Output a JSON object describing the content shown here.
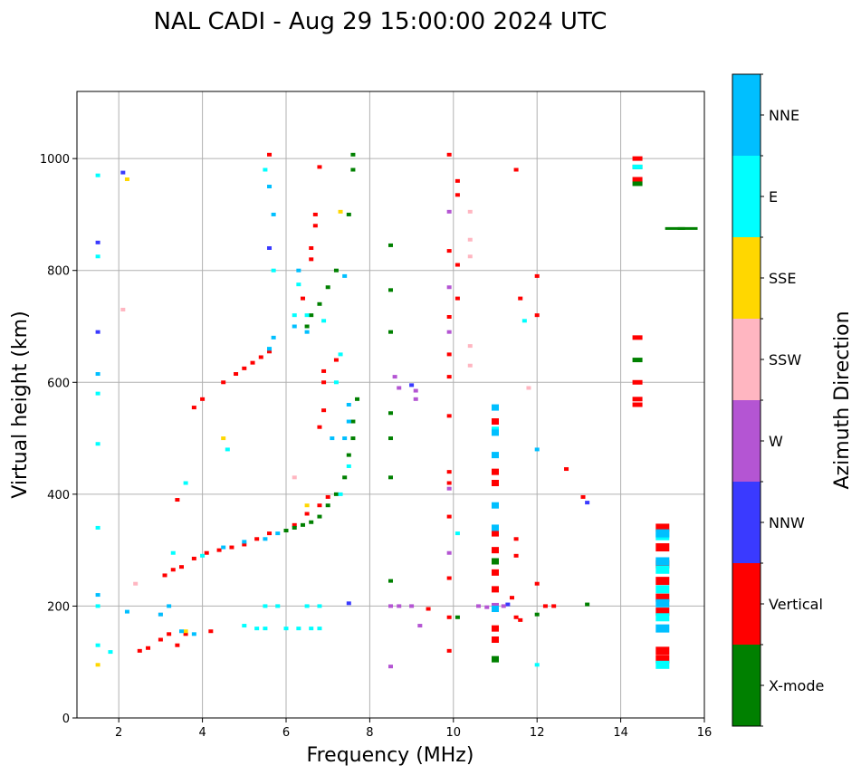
{
  "chart_data": {
    "type": "scatter",
    "title": "NAL CADI - Aug 29 15:00:00 2024 UTC",
    "xlabel": "Frequency (MHz)",
    "ylabel": "Virtual height (km)",
    "xlim": [
      1,
      16
    ],
    "ylim": [
      0,
      1120
    ],
    "xticks": [
      2,
      4,
      6,
      8,
      10,
      12,
      14,
      16
    ],
    "yticks": [
      0,
      200,
      400,
      600,
      800,
      1000
    ],
    "grid": true,
    "colorbar": {
      "label": "Azimuth Direction",
      "categories": [
        {
          "name": "X-mode",
          "color": "#008000"
        },
        {
          "name": "Vertical",
          "color": "#ff0000"
        },
        {
          "name": "NNW",
          "color": "#3a3aff"
        },
        {
          "name": "W",
          "color": "#b455d3"
        },
        {
          "name": "SSW",
          "color": "#ffb6c1"
        },
        {
          "name": "SSE",
          "color": "#ffd700"
        },
        {
          "name": "E",
          "color": "#00ffff"
        },
        {
          "name": "NNE",
          "color": "#00bfff"
        }
      ]
    },
    "series": [
      {
        "name": "Vertical",
        "points": [
          [
            2.5,
            120
          ],
          [
            2.7,
            125
          ],
          [
            3.0,
            140
          ],
          [
            3.2,
            150
          ],
          [
            3.4,
            130
          ],
          [
            3.6,
            150
          ],
          [
            4.2,
            155
          ],
          [
            3.1,
            255
          ],
          [
            3.3,
            265
          ],
          [
            3.5,
            270
          ],
          [
            3.8,
            285
          ],
          [
            4.1,
            295
          ],
          [
            4.4,
            300
          ],
          [
            4.7,
            305
          ],
          [
            5.0,
            310
          ],
          [
            5.3,
            320
          ],
          [
            5.6,
            330
          ],
          [
            4.5,
            600
          ],
          [
            4.8,
            615
          ],
          [
            5.0,
            625
          ],
          [
            5.2,
            635
          ],
          [
            5.4,
            645
          ],
          [
            5.6,
            655
          ],
          [
            3.4,
            390
          ],
          [
            3.8,
            555
          ],
          [
            4.0,
            570
          ],
          [
            6.2,
            345
          ],
          [
            6.5,
            365
          ],
          [
            6.8,
            380
          ],
          [
            7.0,
            395
          ],
          [
            6.4,
            750
          ],
          [
            6.6,
            820
          ],
          [
            6.6,
            840
          ],
          [
            6.7,
            880
          ],
          [
            6.7,
            900
          ],
          [
            6.8,
            985
          ],
          [
            6.8,
            520
          ],
          [
            6.9,
            550
          ],
          [
            6.9,
            600
          ],
          [
            6.9,
            620
          ],
          [
            7.2,
            640
          ],
          [
            5.6,
            1007
          ],
          [
            9.9,
            1007
          ],
          [
            9.9,
            835
          ],
          [
            9.9,
            717
          ],
          [
            9.9,
            650
          ],
          [
            9.9,
            610
          ],
          [
            9.9,
            540
          ],
          [
            9.9,
            440
          ],
          [
            9.9,
            420
          ],
          [
            9.9,
            360
          ],
          [
            9.9,
            250
          ],
          [
            9.9,
            180
          ],
          [
            9.9,
            120
          ],
          [
            10.1,
            960
          ],
          [
            10.1,
            935
          ],
          [
            10.1,
            810
          ],
          [
            10.1,
            750
          ],
          [
            11.0,
            530
          ],
          [
            11.0,
            440
          ],
          [
            11.0,
            420
          ],
          [
            11.0,
            330
          ],
          [
            11.0,
            300
          ],
          [
            11.0,
            260
          ],
          [
            11.0,
            230
          ],
          [
            11.0,
            160
          ],
          [
            11.0,
            140
          ],
          [
            11.5,
            980
          ],
          [
            11.6,
            750
          ],
          [
            11.5,
            320
          ],
          [
            11.5,
            290
          ],
          [
            11.4,
            215
          ],
          [
            11.5,
            180
          ],
          [
            11.6,
            175
          ],
          [
            12.0,
            790
          ],
          [
            12.0,
            720
          ],
          [
            12.0,
            240
          ],
          [
            12.2,
            200
          ],
          [
            12.4,
            200
          ],
          [
            12.7,
            445
          ],
          [
            13.1,
            395
          ],
          [
            14.4,
            1000
          ],
          [
            14.4,
            963
          ],
          [
            14.4,
            680
          ],
          [
            14.4,
            600
          ],
          [
            14.4,
            570
          ],
          [
            14.4,
            560
          ],
          [
            15.0,
            340
          ],
          [
            15.0,
            305
          ],
          [
            15.0,
            275
          ],
          [
            15.0,
            245
          ],
          [
            15.0,
            215
          ],
          [
            15.0,
            190
          ],
          [
            15.0,
            120
          ],
          [
            15.0,
            105
          ],
          [
            9.4,
            195
          ]
        ]
      },
      {
        "name": "X-mode",
        "points": [
          [
            6.0,
            335
          ],
          [
            6.2,
            340
          ],
          [
            6.4,
            345
          ],
          [
            6.6,
            350
          ],
          [
            6.8,
            360
          ],
          [
            7.0,
            380
          ],
          [
            7.2,
            400
          ],
          [
            7.4,
            430
          ],
          [
            7.5,
            470
          ],
          [
            7.6,
            500
          ],
          [
            7.6,
            530
          ],
          [
            7.7,
            570
          ],
          [
            6.5,
            700
          ],
          [
            6.6,
            720
          ],
          [
            6.8,
            740
          ],
          [
            7.0,
            770
          ],
          [
            7.2,
            800
          ],
          [
            7.5,
            900
          ],
          [
            7.6,
            980
          ],
          [
            7.6,
            1007
          ],
          [
            8.5,
            845
          ],
          [
            8.5,
            765
          ],
          [
            8.5,
            690
          ],
          [
            8.5,
            545
          ],
          [
            8.5,
            500
          ],
          [
            8.5,
            430
          ],
          [
            8.5,
            245
          ],
          [
            10.1,
            180
          ],
          [
            11.0,
            105
          ],
          [
            11.0,
            280
          ],
          [
            14.4,
            985
          ],
          [
            14.4,
            955
          ],
          [
            14.4,
            640
          ],
          [
            15.3,
            875
          ],
          [
            15.6,
            875
          ],
          [
            13.2,
            203
          ],
          [
            12.0,
            185
          ]
        ]
      },
      {
        "name": "NNW",
        "points": [
          [
            1.5,
            850
          ],
          [
            1.5,
            690
          ],
          [
            2.1,
            975
          ],
          [
            5.6,
            840
          ],
          [
            7.5,
            205
          ],
          [
            13.2,
            385
          ],
          [
            11.3,
            203
          ],
          [
            9.0,
            595
          ]
        ]
      },
      {
        "name": "W",
        "points": [
          [
            8.5,
            200
          ],
          [
            8.7,
            200
          ],
          [
            9.0,
            200
          ],
          [
            8.6,
            610
          ],
          [
            9.1,
            585
          ],
          [
            9.1,
            570
          ],
          [
            8.7,
            590
          ],
          [
            9.2,
            165
          ],
          [
            8.5,
            92
          ],
          [
            10.6,
            200
          ],
          [
            10.8,
            198
          ],
          [
            11.0,
            200
          ],
          [
            11.2,
            200
          ],
          [
            9.9,
            410
          ],
          [
            9.9,
            295
          ],
          [
            9.9,
            905
          ],
          [
            9.9,
            690
          ],
          [
            9.9,
            770
          ]
        ]
      },
      {
        "name": "SSW",
        "points": [
          [
            2.1,
            730
          ],
          [
            2.4,
            240
          ],
          [
            6.2,
            430
          ],
          [
            10.4,
            905
          ],
          [
            10.4,
            855
          ],
          [
            10.4,
            825
          ],
          [
            10.4,
            665
          ],
          [
            10.4,
            630
          ],
          [
            11.8,
            590
          ],
          [
            3.0,
            185
          ],
          [
            5.8,
            200
          ]
        ]
      },
      {
        "name": "SSE",
        "points": [
          [
            1.5,
            95
          ],
          [
            2.2,
            963
          ],
          [
            3.6,
            155
          ],
          [
            4.5,
            500
          ],
          [
            7.3,
            905
          ],
          [
            6.5,
            380
          ]
        ]
      },
      {
        "name": "E",
        "points": [
          [
            1.5,
            970
          ],
          [
            1.5,
            825
          ],
          [
            1.5,
            580
          ],
          [
            1.5,
            490
          ],
          [
            1.5,
            340
          ],
          [
            1.5,
            200
          ],
          [
            1.5,
            130
          ],
          [
            1.8,
            118
          ],
          [
            3.3,
            295
          ],
          [
            3.6,
            420
          ],
          [
            4.0,
            290
          ],
          [
            4.6,
            480
          ],
          [
            5.0,
            165
          ],
          [
            5.3,
            160
          ],
          [
            5.5,
            160
          ],
          [
            6.0,
            160
          ],
          [
            6.3,
            160
          ],
          [
            6.6,
            160
          ],
          [
            6.8,
            160
          ],
          [
            5.6,
            660
          ],
          [
            6.2,
            720
          ],
          [
            6.5,
            720
          ],
          [
            6.9,
            710
          ],
          [
            7.2,
            600
          ],
          [
            7.3,
            400
          ],
          [
            7.5,
            450
          ],
          [
            5.5,
            200
          ],
          [
            5.8,
            200
          ],
          [
            6.5,
            200
          ],
          [
            6.8,
            200
          ],
          [
            5.7,
            800
          ],
          [
            6.3,
            775
          ],
          [
            5.5,
            980
          ],
          [
            7.3,
            650
          ],
          [
            10.1,
            330
          ],
          [
            11.0,
            515
          ],
          [
            11.7,
            710
          ],
          [
            12.0,
            95
          ],
          [
            14.4,
            985
          ],
          [
            15.0,
            325
          ],
          [
            15.0,
            265
          ],
          [
            15.0,
            230
          ],
          [
            15.0,
            180
          ],
          [
            15.0,
            95
          ]
        ]
      },
      {
        "name": "NNE",
        "points": [
          [
            1.5,
            615
          ],
          [
            1.5,
            220
          ],
          [
            2.2,
            190
          ],
          [
            3.0,
            185
          ],
          [
            3.2,
            200
          ],
          [
            3.5,
            155
          ],
          [
            3.8,
            150
          ],
          [
            4.5,
            305
          ],
          [
            5.0,
            315
          ],
          [
            5.5,
            320
          ],
          [
            5.8,
            330
          ],
          [
            5.6,
            660
          ],
          [
            5.7,
            680
          ],
          [
            6.2,
            700
          ],
          [
            6.3,
            800
          ],
          [
            6.5,
            690
          ],
          [
            7.1,
            500
          ],
          [
            7.4,
            500
          ],
          [
            7.5,
            530
          ],
          [
            7.5,
            560
          ],
          [
            7.4,
            790
          ],
          [
            5.6,
            950
          ],
          [
            5.7,
            900
          ],
          [
            11.0,
            555
          ],
          [
            11.0,
            510
          ],
          [
            11.0,
            470
          ],
          [
            11.0,
            380
          ],
          [
            11.0,
            340
          ],
          [
            11.0,
            195
          ],
          [
            12.0,
            480
          ],
          [
            15.0,
            330
          ],
          [
            15.0,
            280
          ],
          [
            15.0,
            205
          ],
          [
            15.0,
            160
          ]
        ]
      }
    ]
  }
}
